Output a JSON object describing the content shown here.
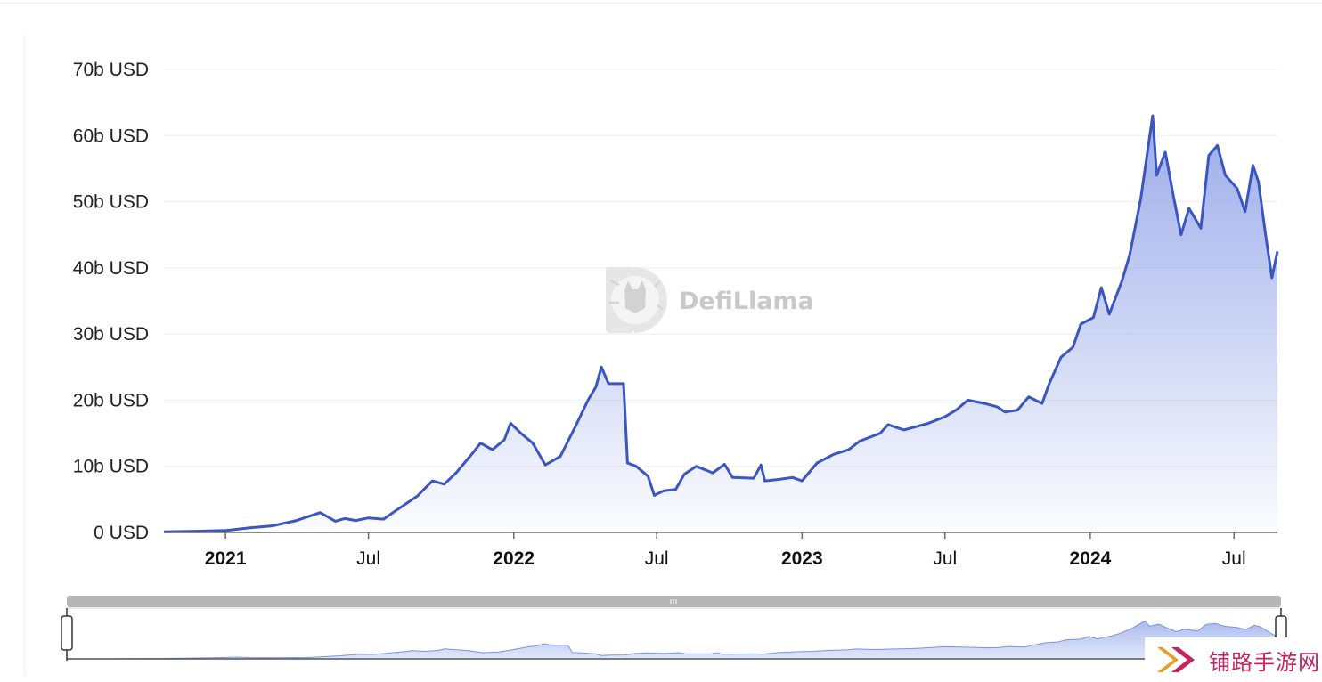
{
  "watermark": {
    "brand": "DefiLlama"
  },
  "badge": {
    "text": "铺路手游网"
  },
  "colors": {
    "line": "#3b56c0",
    "fill_top": "#8a9de6",
    "grid": "#eeeeee",
    "slider": "#b5b5b5"
  },
  "chart_data": {
    "type": "area",
    "title": "",
    "xlabel": "",
    "ylabel": "",
    "y_unit": "USD",
    "ylim": [
      0,
      70
    ],
    "x_range": [
      "2020-10-15",
      "2024-08-25"
    ],
    "grid": true,
    "legend": "none",
    "y_ticks": [
      "0 USD",
      "10b USD",
      "20b USD",
      "30b USD",
      "40b USD",
      "50b USD",
      "60b USD",
      "70b USD"
    ],
    "x_ticks": [
      {
        "label": "2021",
        "date": "2021-01-01",
        "year": true
      },
      {
        "label": "Jul",
        "date": "2021-07-01",
        "year": false
      },
      {
        "label": "2022",
        "date": "2022-01-01",
        "year": true
      },
      {
        "label": "Jul",
        "date": "2022-07-01",
        "year": false
      },
      {
        "label": "2023",
        "date": "2023-01-01",
        "year": true
      },
      {
        "label": "Jul",
        "date": "2023-07-01",
        "year": false
      },
      {
        "label": "2024",
        "date": "2024-01-01",
        "year": true
      },
      {
        "label": "Jul",
        "date": "2024-07-01",
        "year": false
      }
    ],
    "series": [
      {
        "values_unit": "billion USD",
        "points": [
          [
            "2020-10-15",
            0.1
          ],
          [
            "2020-12-01",
            0.2
          ],
          [
            "2021-01-01",
            0.3
          ],
          [
            "2021-02-01",
            0.7
          ],
          [
            "2021-03-01",
            1.0
          ],
          [
            "2021-04-01",
            1.8
          ],
          [
            "2021-05-01",
            3.0
          ],
          [
            "2021-05-20",
            1.7
          ],
          [
            "2021-06-01",
            2.1
          ],
          [
            "2021-06-15",
            1.8
          ],
          [
            "2021-07-01",
            2.2
          ],
          [
            "2021-07-20",
            2.0
          ],
          [
            "2021-08-01",
            3.0
          ],
          [
            "2021-09-01",
            5.5
          ],
          [
            "2021-09-20",
            7.8
          ],
          [
            "2021-10-05",
            7.3
          ],
          [
            "2021-10-20",
            9.0
          ],
          [
            "2021-11-10",
            12.0
          ],
          [
            "2021-11-20",
            13.5
          ],
          [
            "2021-12-05",
            12.5
          ],
          [
            "2021-12-20",
            14.0
          ],
          [
            "2021-12-28",
            16.5
          ],
          [
            "2022-01-10",
            15.0
          ],
          [
            "2022-01-25",
            13.5
          ],
          [
            "2022-02-10",
            10.2
          ],
          [
            "2022-03-01",
            11.5
          ],
          [
            "2022-03-20",
            16.0
          ],
          [
            "2022-04-05",
            20.0
          ],
          [
            "2022-04-15",
            22.0
          ],
          [
            "2022-04-22",
            25.0
          ],
          [
            "2022-05-01",
            22.5
          ],
          [
            "2022-05-20",
            22.5
          ],
          [
            "2022-05-25",
            10.5
          ],
          [
            "2022-06-05",
            10.0
          ],
          [
            "2022-06-20",
            8.5
          ],
          [
            "2022-06-28",
            5.6
          ],
          [
            "2022-07-10",
            6.3
          ],
          [
            "2022-07-25",
            6.5
          ],
          [
            "2022-08-05",
            8.8
          ],
          [
            "2022-08-20",
            10.0
          ],
          [
            "2022-09-10",
            9.0
          ],
          [
            "2022-09-25",
            10.3
          ],
          [
            "2022-10-05",
            8.3
          ],
          [
            "2022-11-01",
            8.2
          ],
          [
            "2022-11-10",
            10.2
          ],
          [
            "2022-11-15",
            7.8
          ],
          [
            "2022-12-01",
            8.0
          ],
          [
            "2022-12-20",
            8.3
          ],
          [
            "2023-01-01",
            7.8
          ],
          [
            "2023-01-20",
            10.5
          ],
          [
            "2023-02-10",
            11.8
          ],
          [
            "2023-03-01",
            12.5
          ],
          [
            "2023-03-15",
            13.8
          ],
          [
            "2023-04-10",
            15.0
          ],
          [
            "2023-04-20",
            16.3
          ],
          [
            "2023-05-10",
            15.5
          ],
          [
            "2023-06-10",
            16.5
          ],
          [
            "2023-07-01",
            17.5
          ],
          [
            "2023-07-15",
            18.5
          ],
          [
            "2023-07-30",
            20.0
          ],
          [
            "2023-08-20",
            19.5
          ],
          [
            "2023-09-05",
            19.0
          ],
          [
            "2023-09-15",
            18.2
          ],
          [
            "2023-10-01",
            18.5
          ],
          [
            "2023-10-15",
            20.5
          ],
          [
            "2023-11-01",
            19.5
          ],
          [
            "2023-11-10",
            22.5
          ],
          [
            "2023-11-25",
            26.5
          ],
          [
            "2023-12-10",
            28.0
          ],
          [
            "2023-12-20",
            31.5
          ],
          [
            "2024-01-05",
            32.5
          ],
          [
            "2024-01-15",
            37.0
          ],
          [
            "2024-01-25",
            33.0
          ],
          [
            "2024-02-10",
            38.0
          ],
          [
            "2024-02-20",
            42.0
          ],
          [
            "2024-03-05",
            50.5
          ],
          [
            "2024-03-20",
            63.0
          ],
          [
            "2024-03-25",
            54.0
          ],
          [
            "2024-04-05",
            57.5
          ],
          [
            "2024-04-15",
            51.0
          ],
          [
            "2024-04-25",
            45.0
          ],
          [
            "2024-05-05",
            49.0
          ],
          [
            "2024-05-20",
            46.0
          ],
          [
            "2024-05-30",
            57.0
          ],
          [
            "2024-06-10",
            58.5
          ],
          [
            "2024-06-20",
            54.0
          ],
          [
            "2024-07-05",
            52.0
          ],
          [
            "2024-07-15",
            48.5
          ],
          [
            "2024-07-25",
            55.5
          ],
          [
            "2024-08-01",
            53.0
          ],
          [
            "2024-08-10",
            45.0
          ],
          [
            "2024-08-18",
            38.5
          ],
          [
            "2024-08-25",
            42.5
          ]
        ]
      }
    ]
  }
}
